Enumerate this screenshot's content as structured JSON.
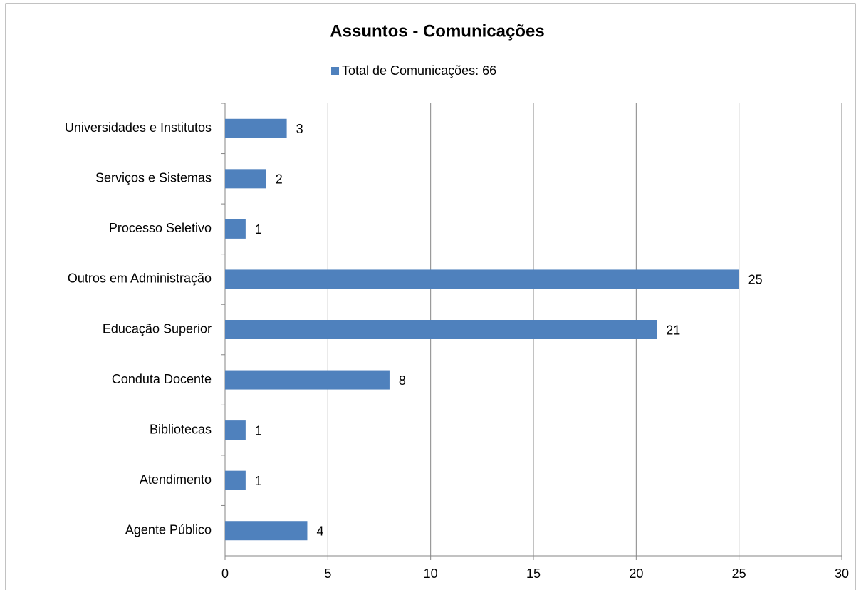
{
  "chart_data": {
    "type": "bar",
    "orientation": "horizontal",
    "title": "Assuntos  - Comunicações",
    "categories": [
      "Universidades e Institutos",
      "Serviços e Sistemas",
      "Processo Seletivo",
      "Outros em Administração",
      "Educação Superior",
      "Conduta Docente",
      "Bibliotecas",
      "Atendimento",
      "Agente Público"
    ],
    "series": [
      {
        "name": "Total de Comunicações: 66",
        "color": "#4f81bd",
        "values": [
          3,
          2,
          1,
          25,
          21,
          8,
          1,
          1,
          4
        ]
      }
    ],
    "xlim": [
      0,
      30
    ],
    "xticks": [
      0,
      5,
      10,
      15,
      20,
      25,
      30
    ],
    "grid": true,
    "legend": "top"
  }
}
